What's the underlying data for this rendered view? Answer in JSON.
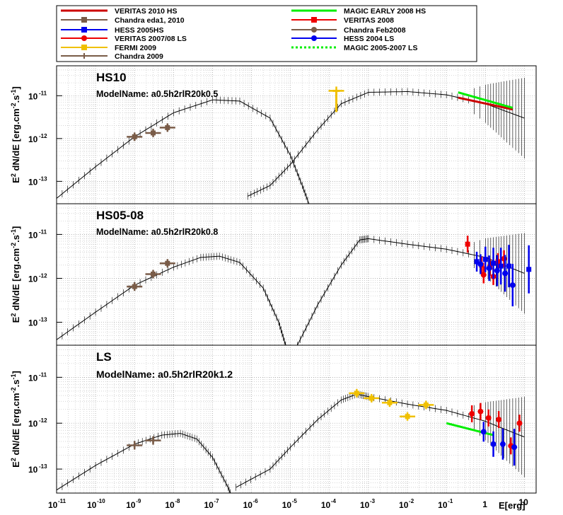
{
  "legend": {
    "entries": [
      {
        "label": "VERITAS 2010 HS",
        "color": "#cc0000",
        "style": "line"
      },
      {
        "label": "Chandra eda1, 2010",
        "color": "#7a5c48",
        "style": "square"
      },
      {
        "label": "HESS 2005HS",
        "color": "#0000ee",
        "style": "square"
      },
      {
        "label": "VERITAS 2007/08 LS",
        "color": "#ee0000",
        "style": "circle"
      },
      {
        "label": "FERMI 2009",
        "color": "#f0c000",
        "style": "square"
      },
      {
        "label": "Chandra 2009",
        "color": "#7a5c48",
        "style": "cross"
      },
      {
        "label": "MAGIC EARLY 2008 HS",
        "color": "#00ee00",
        "style": "line"
      },
      {
        "label": "VERITAS 2008",
        "color": "#ee0000",
        "style": "square"
      },
      {
        "label": "Chandra Feb2008",
        "color": "#7a5c48",
        "style": "circle"
      },
      {
        "label": "HESS 2004 LS",
        "color": "#0000ee",
        "style": "circle"
      },
      {
        "label": "MAGIC 2005-2007 LS",
        "color": "#00ee00",
        "style": "dotted"
      }
    ]
  },
  "axes": {
    "ylabel_main": "E",
    "ylabel_sup": "2",
    "ylabel_rest": " dN/dE [erg.cm",
    "ylabel_sup2": "-2",
    "ylabel_dot": ".s",
    "ylabel_sup3": "-1",
    "ylabel_end": "]",
    "xlabel_main": "E",
    "xlabel_rest": "[erg]",
    "ytick_exps": [
      "-11",
      "-12",
      "-13"
    ],
    "xtick_exps": [
      "-11",
      "-10",
      "-9",
      "-8",
      "-7",
      "-6",
      "-5",
      "-4",
      "-3",
      "-2",
      "-1"
    ],
    "xtick_one": "1",
    "xtick_ten": "10",
    "tick_base": "10"
  },
  "chart_data": [
    {
      "type": "scatter",
      "title": "HS10",
      "subtitle": "ModelName: a0.5h2rlR20k0.5",
      "x_scale": "log",
      "y_scale": "log",
      "xlim": [
        1e-11,
        20
      ],
      "ylim": [
        3e-14,
        5e-11
      ],
      "grid": true,
      "model_components": [
        {
          "name": "synchrotron",
          "x": [
            1e-11,
            1e-10,
            1e-09,
            1e-08,
            1e-07,
            5e-07,
            3e-06,
            1e-05,
            2e-05,
            3.5e-05
          ],
          "y": [
            4e-14,
            2.2e-13,
            1.1e-12,
            4e-12,
            8e-12,
            7.5e-12,
            3e-12,
            4e-13,
            8e-14,
            2e-14
          ]
        },
        {
          "name": "inverse-compton",
          "x": [
            8e-07,
            3e-06,
            1e-05,
            5e-05,
            0.0002,
            0.001,
            0.01,
            0.1,
            1,
            3,
            10
          ],
          "y": [
            4.5e-14,
            8e-14,
            2.5e-13,
            1.6e-12,
            6.5e-12,
            1.2e-11,
            1.25e-11,
            1.05e-11,
            6.5e-12,
            4.5e-12,
            3e-12
          ]
        }
      ],
      "series": [
        {
          "name": "Chandra eda1, 2010",
          "color": "#7a5c48",
          "marker": "square",
          "x": [
            1e-09,
            3e-09,
            7e-09
          ],
          "y": [
            1.1e-12,
            1.35e-12,
            1.8e-12
          ]
        },
        {
          "name": "FERMI 2009",
          "color": "#f0c000",
          "marker": "upper-limit",
          "x": [
            0.00015
          ],
          "y": [
            1.3e-11
          ]
        },
        {
          "name": "VERITAS 2010 HS",
          "color": "#cc0000",
          "marker": "line",
          "x": [
            0.2,
            5
          ],
          "y": [
            9e-12,
            4.8e-12
          ]
        },
        {
          "name": "MAGIC EARLY 2008 HS",
          "color": "#00ee00",
          "marker": "line",
          "x": [
            0.2,
            5
          ],
          "y": [
            1.2e-11,
            5.2e-12
          ]
        }
      ]
    },
    {
      "type": "scatter",
      "title": "HS05-08",
      "subtitle": "ModelName: a0.5h2rlR20k0.8",
      "x_scale": "log",
      "y_scale": "log",
      "xlim": [
        1e-11,
        20
      ],
      "ylim": [
        3e-14,
        5e-11
      ],
      "grid": true,
      "model_components": [
        {
          "name": "synchrotron",
          "x": [
            1e-11,
            1e-10,
            1e-09,
            1e-08,
            5e-08,
            1.5e-07,
            5e-07,
            2e-06,
            5e-06,
            8e-06
          ],
          "y": [
            4e-14,
            1.7e-13,
            7e-13,
            1.8e-12,
            3e-12,
            3.2e-12,
            2.3e-12,
            6e-13,
            1e-13,
            2.5e-14
          ]
        },
        {
          "name": "inverse-compton",
          "x": [
            1.5e-05,
            5e-05,
            0.0002,
            0.0006,
            0.001,
            0.01,
            0.1,
            1,
            3,
            10
          ],
          "y": [
            3e-14,
            2.5e-13,
            2e-12,
            7.5e-12,
            8e-12,
            6e-12,
            4.6e-12,
            3e-12,
            2e-12,
            1.3e-12
          ]
        }
      ],
      "series": [
        {
          "name": "Chandra Feb2008",
          "color": "#7a5c48",
          "marker": "square",
          "x": [
            1e-09,
            3e-09,
            7e-09
          ],
          "y": [
            6.5e-13,
            1.25e-12,
            2.2e-12
          ]
        },
        {
          "name": "VERITAS 2008",
          "color": "#ee0000",
          "marker": "square",
          "x": [
            0.35,
            0.8,
            1.3,
            2.1
          ],
          "y": [
            6e-12,
            2e-12,
            1.8e-12,
            2.4e-12
          ]
        },
        {
          "name": "VERITAS 2007/08 LS",
          "color": "#ee0000",
          "marker": "circle",
          "x": [
            0.9,
            1.6,
            3
          ],
          "y": [
            1.2e-12,
            1.1e-12,
            2.8e-12
          ]
        },
        {
          "name": "HESS 2005HS",
          "color": "#0000ee",
          "marker": "square",
          "x": [
            0.6,
            1.0,
            1.6,
            2.5,
            4.0,
            13
          ],
          "y": [
            2.4e-12,
            2.7e-12,
            2.2e-12,
            1.9e-12,
            1.9e-12,
            1.6e-12
          ]
        },
        {
          "name": "HESS 2004 LS",
          "color": "#0000ee",
          "marker": "circle",
          "x": [
            0.75,
            1.25,
            2.0,
            3.2,
            5.0
          ],
          "y": [
            2.1e-12,
            1.7e-12,
            1.5e-12,
            1.3e-12,
            7e-13
          ]
        }
      ]
    },
    {
      "type": "scatter",
      "title": "LS",
      "subtitle": "ModelName: a0.5h2rlR20k1.2",
      "x_scale": "log",
      "y_scale": "log",
      "xlim": [
        1e-11,
        20
      ],
      "ylim": [
        3e-14,
        5e-11
      ],
      "grid": true,
      "model_components": [
        {
          "name": "synchrotron",
          "x": [
            1e-11,
            1e-10,
            1e-09,
            5e-09,
            1.5e-08,
            4e-08,
            1e-07,
            2.5e-07,
            4e-07
          ],
          "y": [
            3.5e-14,
            1.2e-13,
            3.5e-13,
            5.5e-13,
            6e-13,
            4.5e-13,
            1.8e-13,
            4e-14,
            1.5e-14
          ]
        },
        {
          "name": "inverse-compton",
          "x": [
            4e-07,
            3e-06,
            1e-05,
            5e-05,
            0.0002,
            0.0005,
            0.001,
            0.01,
            0.1,
            1,
            3,
            10
          ],
          "y": [
            4e-14,
            1e-13,
            3e-13,
            1.2e-12,
            3.2e-12,
            4.3e-12,
            3.8e-12,
            2.6e-12,
            1.9e-12,
            1.1e-12,
            7.5e-13,
            5e-13
          ]
        }
      ],
      "series": [
        {
          "name": "Chandra 2009",
          "color": "#7a5c48",
          "marker": "cross",
          "x": [
            1e-09,
            3e-09
          ],
          "y": [
            3.3e-13,
            4.2e-13
          ]
        },
        {
          "name": "FERMI 2009",
          "color": "#f0c000",
          "marker": "square",
          "x": [
            0.0005,
            0.0012,
            0.0035,
            0.01,
            0.03
          ],
          "y": [
            4.5e-12,
            3.5e-12,
            2.8e-12,
            1.4e-12,
            2.5e-12
          ]
        },
        {
          "name": "MAGIC 2005-2007 LS",
          "color": "#00ee00",
          "marker": "line",
          "x": [
            0.1,
            1.6
          ],
          "y": [
            1e-12,
            5.5e-13
          ]
        },
        {
          "name": "VERITAS 2007/08 LS",
          "color": "#ee0000",
          "marker": "circle",
          "x": [
            0.45,
            0.75,
            1.2,
            2.2,
            4.5,
            7.5
          ],
          "y": [
            1.6e-12,
            1.8e-12,
            1.3e-12,
            1.2e-12,
            3.2e-13,
            1e-12
          ]
        },
        {
          "name": "HESS 2004 LS",
          "color": "#0000ee",
          "marker": "circle",
          "x": [
            0.9,
            1.6,
            2.8,
            5.5
          ],
          "y": [
            6.5e-13,
            3.5e-13,
            3.5e-13,
            3e-13
          ]
        }
      ]
    }
  ]
}
